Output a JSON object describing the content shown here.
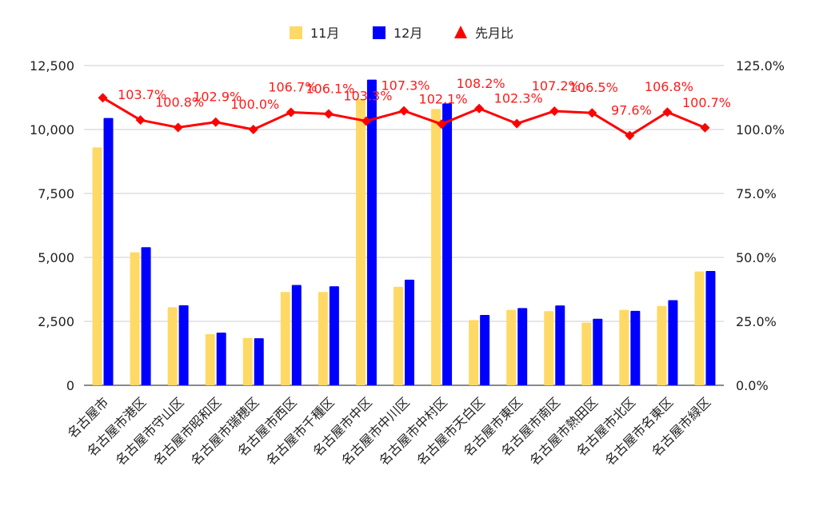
{
  "chart_data": {
    "type": "bar",
    "categories": [
      "名古屋市",
      "名古屋市港区",
      "名古屋市守山区",
      "名古屋市昭和区",
      "名古屋市瑞穂区",
      "名古屋市西区",
      "名古屋市千種区",
      "名古屋市中区",
      "名古屋市中川区",
      "名古屋市中村区",
      "名古屋市天白区",
      "名古屋市東区",
      "名古屋市南区",
      "名古屋市熱田区",
      "名古屋市北区",
      "名古屋市名東区",
      "名古屋市緑区"
    ],
    "series": [
      {
        "name": "11月",
        "type": "bar",
        "axis": "left",
        "color": "#ffd966",
        "values": [
          9300,
          5200,
          3050,
          2000,
          1850,
          3650,
          3650,
          11200,
          3850,
          10800,
          2550,
          2950,
          2900,
          2450,
          2950,
          3100,
          4450
        ]
      },
      {
        "name": "12月",
        "type": "bar",
        "axis": "left",
        "color": "#0000ff",
        "values": [
          10450,
          5400,
          3130,
          2060,
          1840,
          3920,
          3870,
          11950,
          4130,
          11020,
          2750,
          3020,
          3120,
          2600,
          2910,
          3330,
          4470
        ]
      },
      {
        "name": "先月比",
        "type": "line",
        "axis": "right",
        "color": "#ff0000",
        "values": [
          112.4,
          103.7,
          100.8,
          102.9,
          100.0,
          106.7,
          106.1,
          103.3,
          107.3,
          102.1,
          108.2,
          102.3,
          107.2,
          106.5,
          97.6,
          106.8,
          100.7
        ],
        "labels": [
          "",
          "103.7%",
          "100.8%",
          "102.9%",
          "100.0%",
          "106.7%",
          "106.1%",
          "103.3%",
          "107.3%",
          "102.1%",
          "108.2%",
          "102.3%",
          "107.2%",
          "106.5%",
          "97.6%",
          "106.8%",
          "100.7%"
        ]
      }
    ],
    "ylim_left": [
      0,
      12500
    ],
    "ylim_right": [
      0,
      125
    ],
    "y_ticks_left": [
      "0",
      "2,500",
      "5,000",
      "7,500",
      "10,000",
      "12,500"
    ],
    "y_ticks_right": [
      "0.0%",
      "25.0%",
      "50.0%",
      "75.0%",
      "100.0%",
      "125.0%"
    ],
    "grid": true,
    "legend": "top-center"
  }
}
